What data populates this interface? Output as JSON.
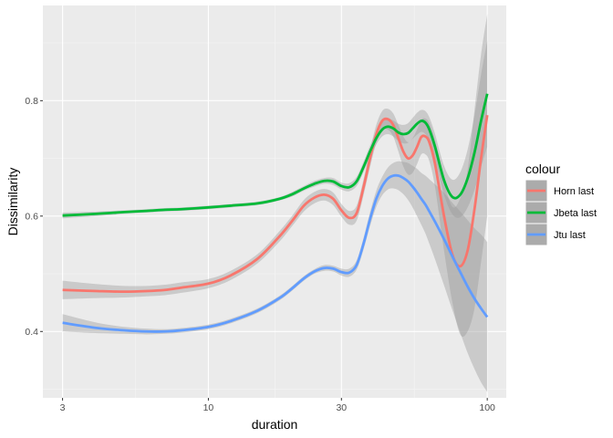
{
  "chart_data": {
    "type": "line",
    "title": "",
    "xlabel": "duration",
    "ylabel": "Dissimilarity",
    "x_scale": "log10",
    "xlim": [
      2.55,
      117
    ],
    "ylim": [
      0.285,
      0.965
    ],
    "x_ticks": [
      3,
      10,
      30,
      100
    ],
    "x_tick_labels": [
      "3",
      "10",
      "30",
      "100"
    ],
    "y_ticks": [
      0.4,
      0.6,
      0.8
    ],
    "y_tick_labels": [
      "0.4",
      "0.6",
      "0.8"
    ],
    "grid": true,
    "legend": {
      "title": "colour",
      "position": "right"
    },
    "series": [
      {
        "name": "Horn last",
        "color": "#F8766D",
        "x": [
          3,
          4,
          5,
          6,
          7,
          8,
          10,
          12,
          15,
          18,
          20,
          22,
          24,
          26,
          28,
          30,
          32,
          34,
          36,
          38,
          40,
          42,
          44,
          46,
          48,
          50,
          52,
          54,
          56,
          58,
          60,
          62,
          65,
          70,
          75,
          80,
          85,
          90,
          95,
          100
        ],
        "y": [
          0.472,
          0.47,
          0.469,
          0.47,
          0.472,
          0.476,
          0.483,
          0.497,
          0.526,
          0.565,
          0.592,
          0.618,
          0.632,
          0.637,
          0.63,
          0.61,
          0.597,
          0.605,
          0.65,
          0.7,
          0.742,
          0.765,
          0.768,
          0.758,
          0.735,
          0.712,
          0.7,
          0.705,
          0.72,
          0.737,
          0.738,
          0.728,
          0.69,
          0.6,
          0.533,
          0.513,
          0.54,
          0.612,
          0.7,
          0.775
        ],
        "lower": [
          0.456,
          0.458,
          0.459,
          0.461,
          0.463,
          0.467,
          0.475,
          0.489,
          0.518,
          0.556,
          0.583,
          0.608,
          0.622,
          0.627,
          0.619,
          0.599,
          0.585,
          0.592,
          0.636,
          0.685,
          0.726,
          0.748,
          0.75,
          0.738,
          0.712,
          0.686,
          0.672,
          0.675,
          0.69,
          0.707,
          0.707,
          0.695,
          0.65,
          0.54,
          0.45,
          0.395,
          0.4,
          0.44,
          0.52,
          0.6
        ],
        "upper": [
          0.488,
          0.482,
          0.479,
          0.479,
          0.481,
          0.485,
          0.491,
          0.505,
          0.534,
          0.574,
          0.601,
          0.628,
          0.642,
          0.647,
          0.641,
          0.621,
          0.609,
          0.618,
          0.664,
          0.715,
          0.758,
          0.782,
          0.786,
          0.778,
          0.758,
          0.738,
          0.728,
          0.735,
          0.75,
          0.767,
          0.769,
          0.761,
          0.73,
          0.66,
          0.616,
          0.631,
          0.68,
          0.784,
          0.88,
          0.95
        ]
      },
      {
        "name": "Jbeta last",
        "color": "#00BA38",
        "x": [
          3,
          4,
          5,
          6,
          7,
          8,
          10,
          12,
          15,
          18,
          20,
          22,
          24,
          26,
          28,
          30,
          32,
          34,
          36,
          38,
          40,
          42,
          44,
          46,
          48,
          50,
          52,
          54,
          56,
          58,
          60,
          62,
          65,
          70,
          75,
          80,
          85,
          90,
          95,
          100
        ],
        "y": [
          0.601,
          0.604,
          0.607,
          0.609,
          0.611,
          0.612,
          0.615,
          0.618,
          0.622,
          0.63,
          0.638,
          0.648,
          0.656,
          0.661,
          0.66,
          0.652,
          0.65,
          0.66,
          0.685,
          0.712,
          0.735,
          0.75,
          0.755,
          0.752,
          0.745,
          0.742,
          0.744,
          0.752,
          0.76,
          0.765,
          0.762,
          0.75,
          0.72,
          0.662,
          0.633,
          0.637,
          0.665,
          0.71,
          0.765,
          0.812
        ],
        "lower": [
          0.596,
          0.6,
          0.604,
          0.606,
          0.608,
          0.609,
          0.612,
          0.615,
          0.619,
          0.627,
          0.634,
          0.644,
          0.651,
          0.656,
          0.654,
          0.646,
          0.643,
          0.652,
          0.676,
          0.702,
          0.724,
          0.738,
          0.742,
          0.738,
          0.73,
          0.726,
          0.727,
          0.734,
          0.741,
          0.746,
          0.742,
          0.729,
          0.698,
          0.637,
          0.603,
          0.598,
          0.615,
          0.645,
          0.685,
          0.72
        ],
        "upper": [
          0.606,
          0.608,
          0.61,
          0.612,
          0.614,
          0.615,
          0.618,
          0.621,
          0.625,
          0.633,
          0.642,
          0.652,
          0.661,
          0.666,
          0.666,
          0.658,
          0.657,
          0.668,
          0.694,
          0.722,
          0.746,
          0.762,
          0.768,
          0.766,
          0.76,
          0.758,
          0.761,
          0.77,
          0.779,
          0.784,
          0.782,
          0.771,
          0.742,
          0.687,
          0.663,
          0.676,
          0.715,
          0.775,
          0.845,
          0.904
        ]
      },
      {
        "name": "Jtu last",
        "color": "#619CFF",
        "x": [
          3,
          4,
          5,
          6,
          7,
          8,
          10,
          12,
          15,
          18,
          20,
          22,
          24,
          26,
          28,
          30,
          32,
          34,
          36,
          38,
          40,
          42,
          44,
          46,
          48,
          50,
          52,
          54,
          56,
          58,
          60,
          62,
          65,
          70,
          75,
          80,
          85,
          90,
          95,
          100
        ],
        "y": [
          0.415,
          0.406,
          0.402,
          0.4,
          0.4,
          0.402,
          0.408,
          0.418,
          0.436,
          0.458,
          0.475,
          0.492,
          0.504,
          0.51,
          0.509,
          0.503,
          0.502,
          0.515,
          0.552,
          0.595,
          0.63,
          0.652,
          0.665,
          0.67,
          0.67,
          0.666,
          0.66,
          0.651,
          0.641,
          0.63,
          0.62,
          0.608,
          0.59,
          0.56,
          0.53,
          0.503,
          0.478,
          0.457,
          0.44,
          0.425
        ],
        "lower": [
          0.4,
          0.397,
          0.396,
          0.395,
          0.396,
          0.398,
          0.404,
          0.414,
          0.432,
          0.454,
          0.471,
          0.488,
          0.5,
          0.505,
          0.504,
          0.497,
          0.495,
          0.507,
          0.542,
          0.583,
          0.616,
          0.636,
          0.646,
          0.648,
          0.645,
          0.638,
          0.628,
          0.615,
          0.6,
          0.585,
          0.57,
          0.552,
          0.525,
          0.48,
          0.437,
          0.398,
          0.363,
          0.335,
          0.312,
          0.295
        ],
        "upper": [
          0.43,
          0.415,
          0.408,
          0.405,
          0.404,
          0.406,
          0.412,
          0.422,
          0.44,
          0.462,
          0.479,
          0.496,
          0.508,
          0.515,
          0.514,
          0.509,
          0.509,
          0.523,
          0.562,
          0.607,
          0.644,
          0.668,
          0.684,
          0.692,
          0.695,
          0.694,
          0.692,
          0.687,
          0.682,
          0.675,
          0.67,
          0.664,
          0.655,
          0.64,
          0.623,
          0.608,
          0.593,
          0.579,
          0.568,
          0.555
        ]
      }
    ]
  }
}
